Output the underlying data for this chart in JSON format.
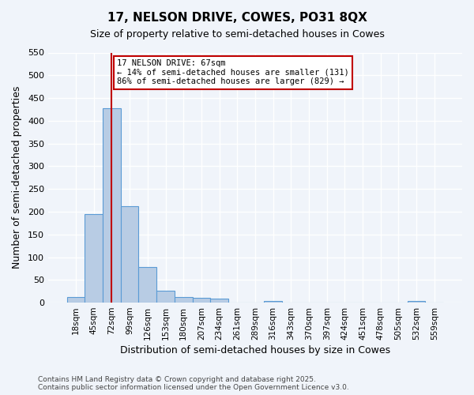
{
  "title": "17, NELSON DRIVE, COWES, PO31 8QX",
  "subtitle": "Size of property relative to semi-detached houses in Cowes",
  "xlabel": "Distribution of semi-detached houses by size in Cowes",
  "ylabel": "Number of semi-detached properties",
  "bar_values": [
    13,
    195,
    428,
    212,
    78,
    27,
    13,
    11,
    8,
    0,
    0,
    4,
    0,
    0,
    0,
    0,
    0,
    0,
    0,
    3,
    0
  ],
  "bin_labels": [
    "18sqm",
    "45sqm",
    "72sqm",
    "99sqm",
    "126sqm",
    "153sqm",
    "180sqm",
    "207sqm",
    "234sqm",
    "261sqm",
    "289sqm",
    "316sqm",
    "343sqm",
    "370sqm",
    "397sqm",
    "424sqm",
    "451sqm",
    "478sqm",
    "505sqm",
    "532sqm",
    "559sqm"
  ],
  "bar_color": "#b8cce4",
  "bar_edge_color": "#5b9bd5",
  "vline_x": 2.0,
  "vline_color": "#c00000",
  "annotation_text": "17 NELSON DRIVE: 67sqm\n← 14% of semi-detached houses are smaller (131)\n86% of semi-detached houses are larger (829) →",
  "annotation_box_color": "#ffffff",
  "annotation_box_edge": "#c00000",
  "ylim": [
    0,
    550
  ],
  "yticks": [
    0,
    50,
    100,
    150,
    200,
    250,
    300,
    350,
    400,
    450,
    500,
    550
  ],
  "footnote": "Contains HM Land Registry data © Crown copyright and database right 2025.\nContains public sector information licensed under the Open Government Licence v3.0.",
  "background_color": "#f0f4fa",
  "grid_color": "#ffffff"
}
